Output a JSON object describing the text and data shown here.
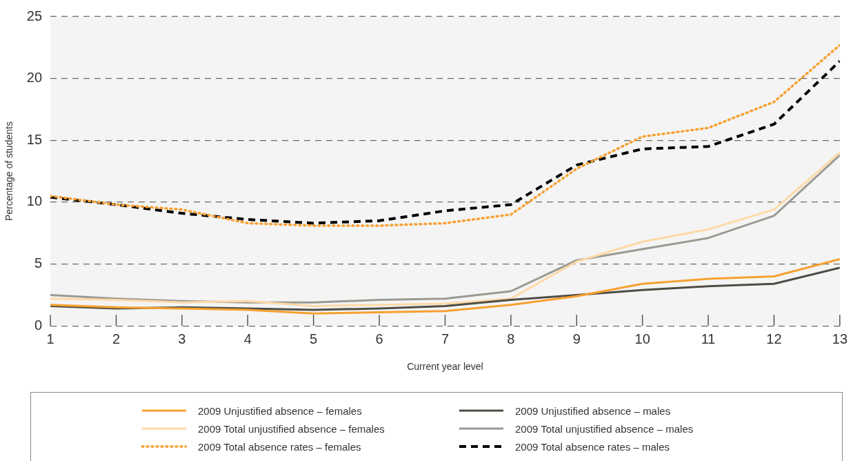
{
  "chart_data": {
    "type": "line",
    "xlabel": "Current year level",
    "ylabel": "Percentage of students",
    "x": [
      1,
      2,
      3,
      4,
      5,
      6,
      7,
      8,
      9,
      10,
      11,
      12,
      13
    ],
    "xlim": [
      1,
      13
    ],
    "xticks": [
      1,
      2,
      3,
      4,
      5,
      6,
      7,
      8,
      9,
      10,
      11,
      12,
      13
    ],
    "ylim": [
      0,
      25
    ],
    "yticks": [
      0,
      5,
      10,
      15,
      20,
      25
    ],
    "grid": "y",
    "legend": "bottom",
    "marker": "none",
    "series": [
      {
        "name": "2009 Unjustified absence – females",
        "color": "#f7a030",
        "line_style": "solid",
        "values": [
          1.7,
          1.5,
          1.4,
          1.3,
          1.0,
          1.1,
          1.2,
          1.7,
          2.4,
          3.4,
          3.8,
          4.0,
          5.4
        ]
      },
      {
        "name": "2009 Unjustified absence – males",
        "color": "#4d4d45",
        "line_style": "solid",
        "values": [
          1.6,
          1.4,
          1.5,
          1.4,
          1.3,
          1.4,
          1.6,
          2.1,
          2.5,
          2.9,
          3.2,
          3.4,
          4.7
        ]
      },
      {
        "name": "2009 Total unjustified absence – females",
        "color": "#fdd9a6",
        "line_style": "solid",
        "values": [
          2.2,
          2.1,
          1.9,
          2.0,
          1.6,
          1.7,
          1.8,
          2.2,
          5.2,
          6.8,
          7.8,
          9.4,
          14.0
        ]
      },
      {
        "name": "2009 Total unjustified absence – males",
        "color": "#9a9a92",
        "line_style": "solid",
        "values": [
          2.5,
          2.2,
          2.0,
          1.9,
          1.9,
          2.1,
          2.2,
          2.8,
          5.3,
          6.2,
          7.1,
          8.9,
          13.8
        ]
      },
      {
        "name": "2009 Total absence rates – females",
        "color": "#f7a030",
        "line_style": "dotted",
        "values": [
          10.5,
          9.8,
          9.4,
          8.3,
          8.1,
          8.1,
          8.3,
          9.0,
          12.7,
          15.3,
          16.0,
          18.1,
          22.7
        ]
      },
      {
        "name": "2009 Total absence rates – males",
        "color": "#000000",
        "line_style": "dashed",
        "values": [
          10.4,
          9.8,
          9.1,
          8.6,
          8.3,
          8.5,
          9.3,
          9.8,
          13.0,
          14.3,
          14.5,
          16.3,
          21.4
        ]
      }
    ]
  }
}
